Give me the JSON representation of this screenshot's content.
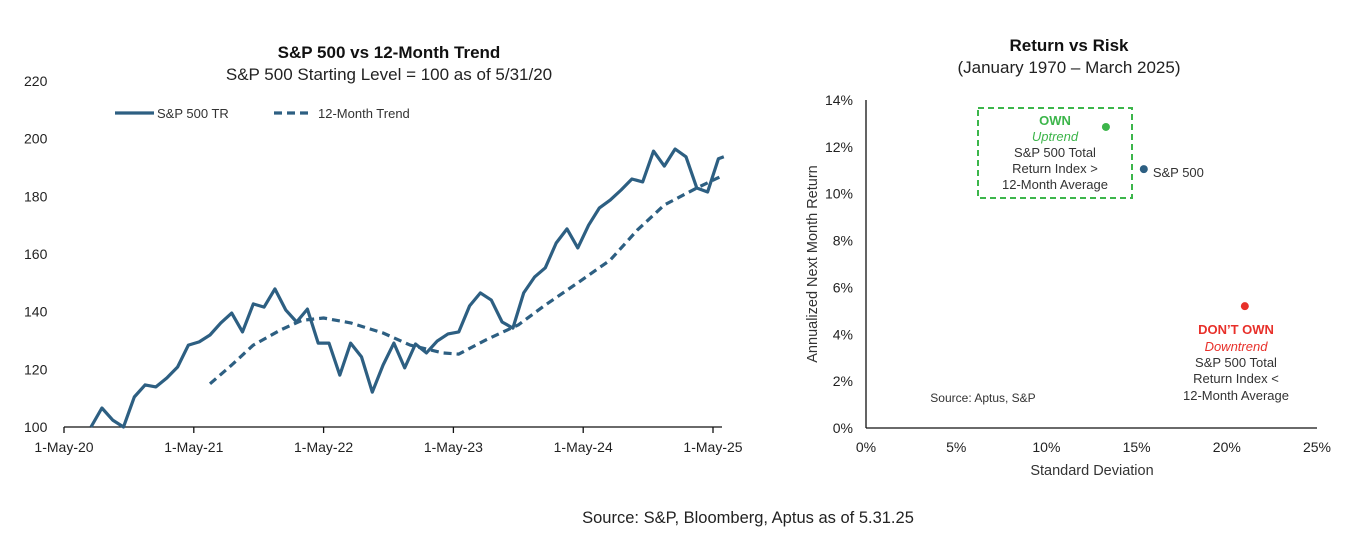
{
  "footer": "Source: S&P, Bloomberg, Aptus as  of 5.31.25",
  "chart_data": [
    {
      "type": "line",
      "title": "S&P 500 vs 12-Month Trend",
      "subtitle": "S&P 500 Starting Level  = 100 as of 5/31/20",
      "xlabel": "",
      "ylabel": "",
      "ylim": [
        100,
        220
      ],
      "yticks": [
        "100",
        "120",
        "140",
        "160",
        "180",
        "200",
        "220"
      ],
      "ytick_values": [
        100,
        120,
        140,
        160,
        180,
        200,
        220
      ],
      "x_unit": "months since 1-May-20",
      "xlim": [
        0,
        61
      ],
      "xticks": [
        {
          "label": "1-May-20",
          "x": 0
        },
        {
          "label": "1-May-21",
          "x": 12
        },
        {
          "label": "1-May-22",
          "x": 24
        },
        {
          "label": "1-May-23",
          "x": 36
        },
        {
          "label": "1-May-24",
          "x": 48
        },
        {
          "label": "1-May-25",
          "x": 60
        }
      ],
      "legend": {
        "placement": "top-left",
        "entries": [
          "S&P 500 TR",
          "12-Month Trend"
        ]
      },
      "grid": false,
      "series": [
        {
          "name": "S&P 500 TR",
          "style": "solid",
          "color": "#2d5f82",
          "x": [
            2.5,
            3.5,
            4.5,
            5.5,
            6.5,
            7.5,
            8.5,
            9.5,
            10.5,
            11.5,
            12.5,
            13.5,
            14.5,
            15.5,
            16.5,
            17.5,
            18.5,
            19.5,
            20.5,
            21.5,
            22.5,
            23.5,
            24.5,
            25.5,
            26.5,
            27.5,
            28.5,
            29.5,
            30.5,
            31.5,
            32.5,
            33.5,
            34.5,
            35.5,
            36.5,
            37.5,
            38.5,
            39.5,
            40.5,
            41.5,
            42.5,
            43.5,
            44.5,
            45.5,
            46.5,
            47.5,
            48.5,
            49.5,
            50.5,
            51.5,
            52.5,
            53.5,
            54.5,
            55.5,
            56.5,
            57.5,
            58.5,
            59.5,
            60.5,
            61.0
          ],
          "values": [
            100,
            106.6,
            102.4,
            100,
            110.4,
            114.6,
            113.9,
            117,
            120.8,
            128.4,
            129.5,
            131.9,
            136.1,
            139.5,
            133,
            142.7,
            141.6,
            147.9,
            140.6,
            136.4,
            140.9,
            129.1,
            129.1,
            118,
            129.1,
            124.3,
            112.1,
            121.5,
            129.1,
            120.5,
            128.8,
            125.7,
            129.8,
            132.3,
            133,
            142,
            146.5,
            144,
            136.4,
            134.3,
            146.5,
            152,
            155.2,
            163.8,
            168.7,
            162.1,
            170,
            176,
            178.7,
            182.2,
            186,
            185,
            195.7,
            190.5,
            196.4,
            193.7,
            182.9,
            181.5,
            193,
            193.7
          ]
        },
        {
          "name": "12-Month Trend",
          "style": "dashed",
          "color": "#2d5f82",
          "x": [
            13.5,
            15.5,
            17.5,
            20,
            22,
            24,
            26.5,
            29.5,
            32,
            35,
            36.5,
            39,
            42,
            44.5,
            47.5,
            50.5,
            53,
            55.5,
            58.5,
            61
          ],
          "values": [
            115,
            121.5,
            128.4,
            133.6,
            137,
            137.8,
            136.1,
            132.6,
            128.4,
            125.7,
            125.3,
            130.2,
            135.4,
            142.3,
            150,
            157.9,
            168.3,
            177,
            182.9,
            187.4
          ]
        }
      ]
    },
    {
      "type": "scatter",
      "title": "Return vs Risk",
      "subtitle": "(January 1970 – March 2025)",
      "xlabel": "Standard Deviation",
      "ylabel": "Annualized Next Month Return",
      "xlim": [
        0,
        25
      ],
      "ylim": [
        0,
        14
      ],
      "xticks": [
        "0%",
        "5%",
        "10%",
        "15%",
        "20%",
        "25%"
      ],
      "xtick_values": [
        0,
        5,
        10,
        15,
        20,
        25
      ],
      "yticks": [
        "0%",
        "2%",
        "4%",
        "6%",
        "8%",
        "10%",
        "12%",
        "14%"
      ],
      "ytick_values": [
        0,
        2,
        4,
        6,
        8,
        10,
        12,
        14
      ],
      "grid": false,
      "source_note": "Source: Aptus, S&P",
      "points": [
        {
          "name": "Uptrend",
          "x": 13.3,
          "y": 12.85,
          "color": "#3cb54a"
        },
        {
          "name": "S&P 500",
          "x": 15.4,
          "y": 11.05,
          "color": "#2d5f82",
          "label": "S&P 500"
        },
        {
          "name": "Downtrend",
          "x": 21.0,
          "y": 5.2,
          "color": "#e8302a"
        }
      ],
      "annotations": {
        "own": {
          "heading": "OWN",
          "subheading": "Uptrend",
          "lines": [
            "S&P 500 Total",
            "Return Index >",
            "12-Month Average"
          ],
          "color": "#3cb54a"
        },
        "dont_own": {
          "heading": "DON’T OWN",
          "subheading": "Downtrend",
          "lines": [
            "S&P 500 Total",
            "Return Index <",
            "12-Month Average"
          ],
          "color": "#e8302a"
        }
      }
    }
  ]
}
